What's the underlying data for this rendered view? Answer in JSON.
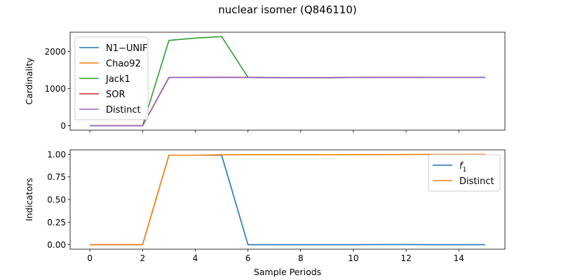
{
  "figure_title": "nuclear isomer (Q846110)",
  "chart_data": [
    {
      "type": "line",
      "title": "",
      "xlabel": "",
      "ylabel": "Cardinality",
      "xlim": [
        -0.75,
        15.75
      ],
      "ylim": [
        -120,
        2520
      ],
      "xticks": [
        0,
        2,
        4,
        6,
        8,
        10,
        12,
        14
      ],
      "xtick_labels_visible": false,
      "yticks": [
        0,
        1000,
        2000
      ],
      "ytick_labels": [
        "0",
        "1000",
        "2000"
      ],
      "legend_position": "upper-left",
      "grid": false,
      "x": [
        0,
        1,
        2,
        3,
        4,
        5,
        6,
        7,
        8,
        9,
        10,
        11,
        12,
        13,
        14,
        15
      ],
      "series": [
        {
          "name": "N1−UNIF",
          "color": "#1f77b4",
          "values": [
            0,
            0,
            0,
            1300,
            1300,
            1305,
            1300,
            1298,
            1298,
            1298,
            1300,
            1303,
            1303,
            1300,
            1300,
            1300
          ]
        },
        {
          "name": "Chao92",
          "color": "#ff7f0e",
          "values": [
            0,
            0,
            0,
            1300,
            1300,
            1305,
            1300,
            1298,
            1298,
            1298,
            1300,
            1303,
            1303,
            1300,
            1300,
            1300
          ]
        },
        {
          "name": "Jack1",
          "color": "#2ca02c",
          "values": [
            0,
            0,
            0,
            2300,
            2360,
            2400,
            1305,
            1300,
            1298,
            1298,
            1300,
            1303,
            1303,
            1300,
            1300,
            1300
          ]
        },
        {
          "name": "SOR",
          "color": "#d62728",
          "values": [
            0,
            0,
            0,
            1300,
            1300,
            1305,
            1300,
            1298,
            1298,
            1298,
            1300,
            1303,
            1303,
            1300,
            1300,
            1300
          ]
        },
        {
          "name": "Distinct",
          "color": "#9467bd",
          "values": [
            0,
            0,
            0,
            1300,
            1300,
            1305,
            1300,
            1298,
            1298,
            1298,
            1300,
            1303,
            1303,
            1300,
            1300,
            1300
          ]
        }
      ]
    },
    {
      "type": "line",
      "title": "",
      "xlabel": "Sample Periods",
      "ylabel": "Indicators",
      "xlim": [
        -0.75,
        15.75
      ],
      "ylim": [
        -0.05,
        1.05
      ],
      "xticks": [
        0,
        2,
        4,
        6,
        8,
        10,
        12,
        14
      ],
      "xtick_labels": [
        "0",
        "2",
        "4",
        "6",
        "8",
        "10",
        "12",
        "14"
      ],
      "yticks": [
        0.0,
        0.25,
        0.5,
        0.75,
        1.0
      ],
      "ytick_labels": [
        "0.00",
        "0.25",
        "0.50",
        "0.75",
        "1.00"
      ],
      "legend_position": "upper-right",
      "grid": false,
      "x": [
        0,
        1,
        2,
        3,
        4,
        5,
        6,
        7,
        8,
        9,
        10,
        11,
        12,
        13,
        14,
        15
      ],
      "series": [
        {
          "name": "f1",
          "label_base": "f",
          "label_sub": "1",
          "color": "#1f77b4",
          "values": [
            0,
            0,
            0,
            0.99,
            0.99,
            0.99,
            0.0,
            0.0,
            0.0,
            0.0,
            0.0,
            0.001,
            0.001,
            0.0,
            0.0,
            0.0
          ]
        },
        {
          "name": "Distinct",
          "color": "#ff7f0e",
          "values": [
            0,
            0,
            0,
            0.99,
            0.99,
            0.995,
            0.995,
            0.995,
            0.995,
            0.995,
            0.996,
            0.997,
            0.998,
            0.999,
            0.999,
            1.0
          ]
        }
      ]
    }
  ]
}
